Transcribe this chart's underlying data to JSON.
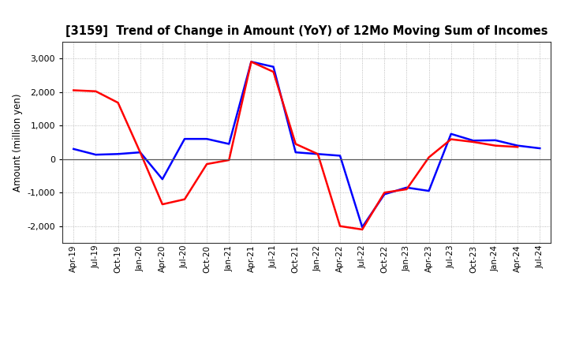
{
  "title": "[3159]  Trend of Change in Amount (YoY) of 12Mo Moving Sum of Incomes",
  "ylabel": "Amount (million yen)",
  "background_color": "#ffffff",
  "grid_color": "#aaaaaa",
  "x_labels": [
    "Apr-19",
    "Jul-19",
    "Oct-19",
    "Jan-20",
    "Apr-20",
    "Jul-20",
    "Oct-20",
    "Jan-21",
    "Apr-21",
    "Jul-21",
    "Oct-21",
    "Jan-22",
    "Apr-22",
    "Jul-22",
    "Oct-22",
    "Jan-23",
    "Apr-23",
    "Jul-23",
    "Oct-23",
    "Jan-24",
    "Apr-24",
    "Jul-24"
  ],
  "ordinary_income": [
    300,
    130,
    150,
    200,
    -600,
    600,
    600,
    450,
    2900,
    2750,
    200,
    150,
    100,
    -2030,
    -1050,
    -850,
    -950,
    750,
    550,
    560,
    400,
    320
  ],
  "net_income": [
    2050,
    2020,
    1680,
    200,
    -1350,
    -1200,
    -150,
    -30,
    2900,
    2600,
    450,
    150,
    -2000,
    -2100,
    -1000,
    -900,
    50,
    590,
    510,
    400,
    360,
    null
  ],
  "ordinary_color": "#0000ff",
  "net_color": "#ff0000",
  "ylim": [
    -2500,
    3500
  ],
  "yticks": [
    -2000,
    -1000,
    0,
    1000,
    2000,
    3000
  ],
  "line_width": 1.8
}
